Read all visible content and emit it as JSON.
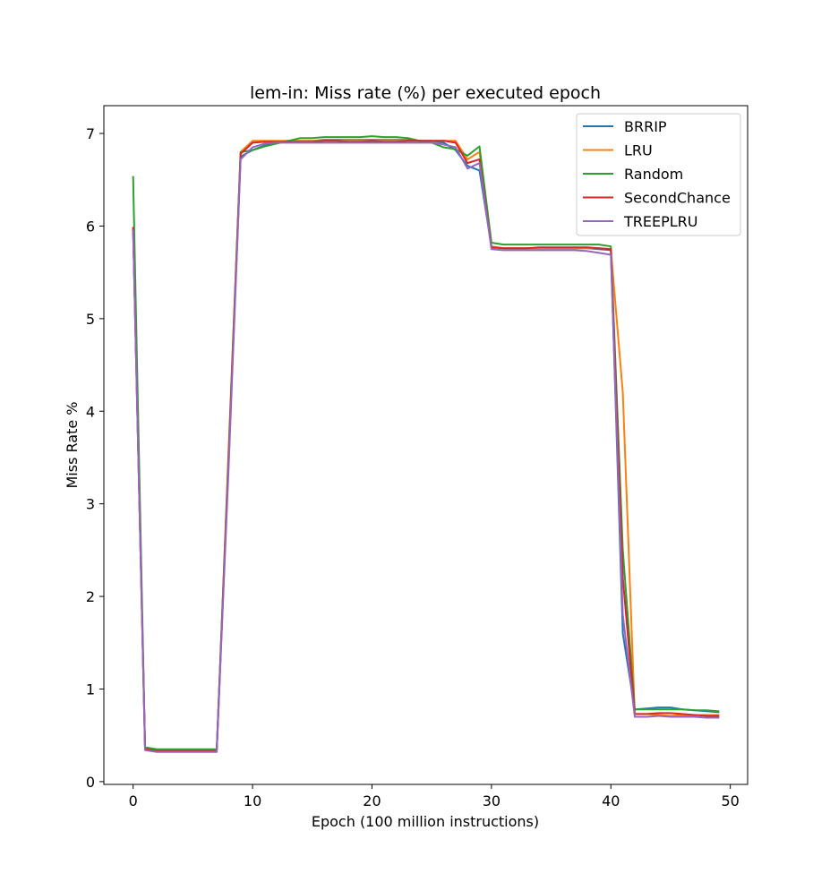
{
  "chart_data": {
    "type": "line",
    "title": "lem-in: Miss rate (%) per executed epoch",
    "xlabel": "Epoch (100 million instructions)",
    "ylabel": "Miss Rate %",
    "xlim": [
      -2.45,
      51.45
    ],
    "ylim": [
      -0.03,
      7.3
    ],
    "xticks": [
      0,
      10,
      20,
      30,
      40,
      50
    ],
    "yticks": [
      0,
      1,
      2,
      3,
      4,
      5,
      6,
      7
    ],
    "grid": false,
    "legend_position": "upper right",
    "x": [
      0,
      1,
      2,
      3,
      4,
      5,
      6,
      7,
      8,
      9,
      10,
      11,
      12,
      13,
      14,
      15,
      16,
      17,
      18,
      19,
      20,
      21,
      22,
      23,
      24,
      25,
      26,
      27,
      28,
      29,
      30,
      31,
      32,
      33,
      34,
      35,
      36,
      37,
      38,
      39,
      40,
      41,
      42,
      43,
      44,
      45,
      46,
      47,
      48,
      49
    ],
    "series": [
      {
        "name": "BRRIP",
        "color": "#1f77b4",
        "values": [
          5.95,
          0.37,
          0.34,
          0.34,
          0.34,
          0.34,
          0.34,
          0.34,
          3.5,
          6.75,
          6.82,
          6.87,
          6.9,
          6.92,
          6.92,
          6.92,
          6.93,
          6.93,
          6.93,
          6.93,
          6.93,
          6.93,
          6.93,
          6.93,
          6.92,
          6.92,
          6.9,
          6.82,
          6.65,
          6.6,
          5.78,
          5.76,
          5.76,
          5.76,
          5.76,
          5.76,
          5.76,
          5.76,
          5.76,
          5.75,
          5.74,
          1.6,
          0.78,
          0.79,
          0.8,
          0.8,
          0.78,
          0.77,
          0.76,
          0.75
        ]
      },
      {
        "name": "LRU",
        "color": "#ff7f0e",
        "values": [
          5.98,
          0.36,
          0.33,
          0.33,
          0.33,
          0.33,
          0.33,
          0.33,
          3.6,
          6.8,
          6.92,
          6.92,
          6.92,
          6.92,
          6.92,
          6.92,
          6.92,
          6.92,
          6.92,
          6.92,
          6.92,
          6.92,
          6.92,
          6.92,
          6.92,
          6.92,
          6.92,
          6.92,
          6.72,
          6.8,
          5.78,
          5.76,
          5.76,
          5.76,
          5.76,
          5.76,
          5.76,
          5.76,
          5.76,
          5.76,
          5.75,
          4.2,
          0.73,
          0.73,
          0.72,
          0.71,
          0.72,
          0.72,
          0.72,
          0.72
        ]
      },
      {
        "name": "Random",
        "color": "#2ca02c",
        "values": [
          6.53,
          0.37,
          0.35,
          0.35,
          0.35,
          0.35,
          0.35,
          0.35,
          3.55,
          6.8,
          6.82,
          6.86,
          6.89,
          6.92,
          6.95,
          6.95,
          6.96,
          6.96,
          6.96,
          6.96,
          6.97,
          6.96,
          6.96,
          6.95,
          6.92,
          6.9,
          6.85,
          6.83,
          6.76,
          6.86,
          5.82,
          5.8,
          5.8,
          5.8,
          5.8,
          5.8,
          5.8,
          5.8,
          5.8,
          5.8,
          5.78,
          2.5,
          0.78,
          0.78,
          0.78,
          0.78,
          0.78,
          0.77,
          0.77,
          0.76
        ]
      },
      {
        "name": "SecondChance",
        "color": "#d62728",
        "values": [
          5.98,
          0.35,
          0.33,
          0.33,
          0.33,
          0.33,
          0.33,
          0.33,
          3.5,
          6.78,
          6.9,
          6.91,
          6.91,
          6.91,
          6.91,
          6.91,
          6.92,
          6.92,
          6.91,
          6.91,
          6.92,
          6.91,
          6.91,
          6.92,
          6.92,
          6.92,
          6.92,
          6.9,
          6.68,
          6.72,
          5.77,
          5.76,
          5.76,
          5.76,
          5.77,
          5.77,
          5.77,
          5.77,
          5.77,
          5.76,
          5.75,
          2.2,
          0.73,
          0.73,
          0.74,
          0.74,
          0.73,
          0.72,
          0.71,
          0.71
        ]
      },
      {
        "name": "TREEPLRU",
        "color": "#9467bd",
        "values": [
          5.95,
          0.34,
          0.32,
          0.32,
          0.32,
          0.32,
          0.32,
          0.32,
          3.4,
          6.72,
          6.85,
          6.89,
          6.9,
          6.9,
          6.9,
          6.9,
          6.9,
          6.9,
          6.9,
          6.9,
          6.9,
          6.9,
          6.9,
          6.9,
          6.9,
          6.9,
          6.88,
          6.85,
          6.62,
          6.68,
          5.75,
          5.74,
          5.74,
          5.74,
          5.74,
          5.74,
          5.74,
          5.74,
          5.73,
          5.71,
          5.69,
          1.8,
          0.7,
          0.7,
          0.71,
          0.7,
          0.7,
          0.7,
          0.69,
          0.69
        ]
      }
    ]
  }
}
